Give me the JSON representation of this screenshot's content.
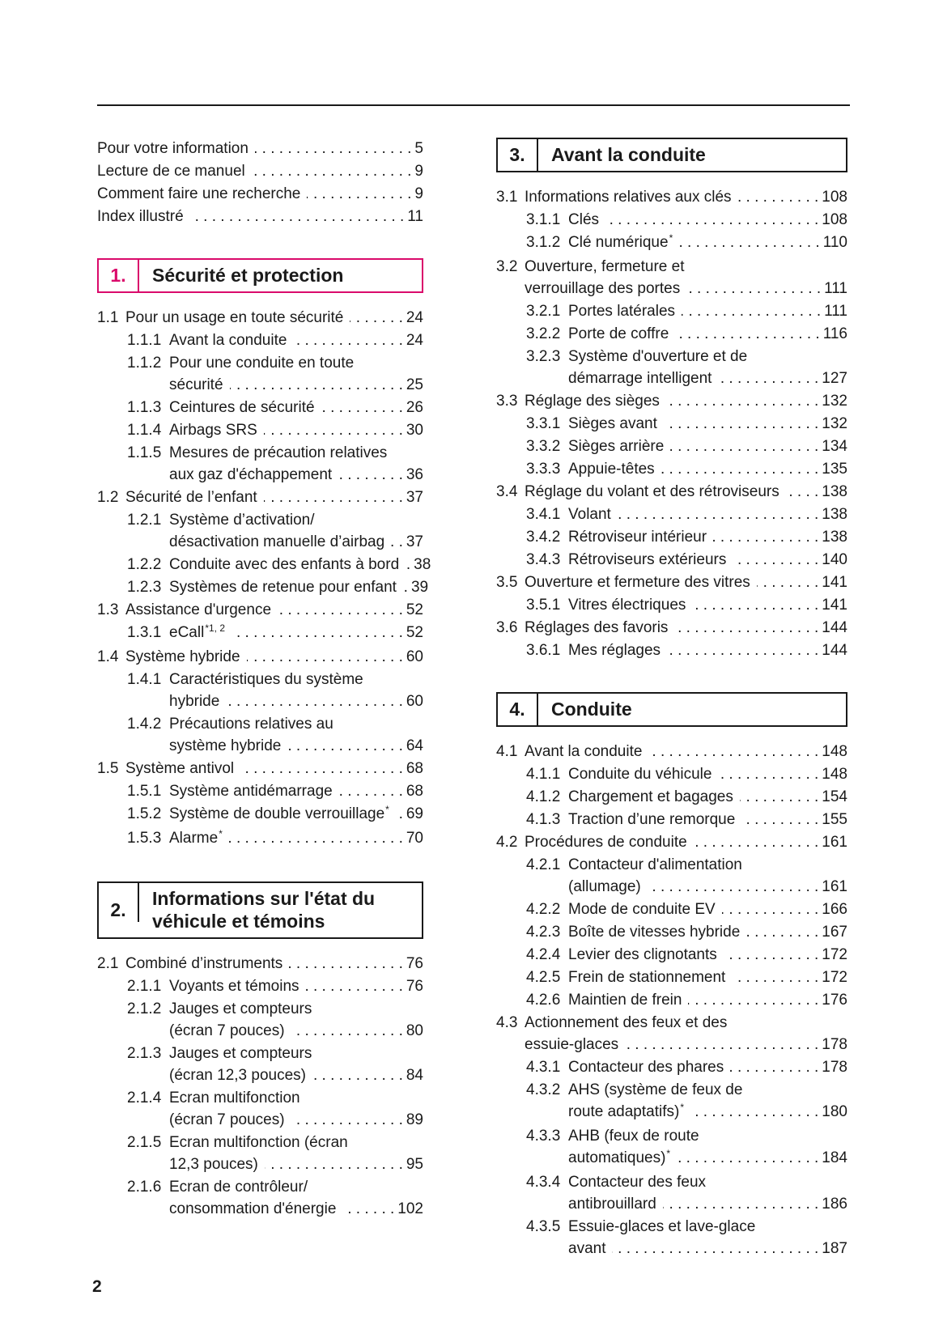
{
  "colors": {
    "ink": "#1a1a1a",
    "accent": "#da0a6b"
  },
  "page_footer": {
    "page_number": "2"
  },
  "columns": {
    "left": [
      {
        "type": "plain",
        "entries": [
          {
            "level": 0,
            "lines": [
              "Pour votre information"
            ],
            "page": "5"
          },
          {
            "level": 0,
            "lines": [
              "Lecture de ce manuel"
            ],
            "page": "9"
          },
          {
            "level": 0,
            "lines": [
              "Comment faire une recherche"
            ],
            "page": "9"
          },
          {
            "level": 0,
            "lines": [
              "Index illustré"
            ],
            "page": "11"
          }
        ]
      },
      {
        "type": "section",
        "number": "1.",
        "title": "Sécurité et protection",
        "accent": true,
        "entries": [
          {
            "num": "1.1",
            "level": 1,
            "lines": [
              "Pour un usage en toute sécurité"
            ],
            "page": "24"
          },
          {
            "num": "1.1.1",
            "level": 2,
            "lines": [
              "Avant la conduite"
            ],
            "page": "24"
          },
          {
            "num": "1.1.2",
            "level": 2,
            "lines": [
              "Pour une conduite en toute",
              "sécurité"
            ],
            "page": "25"
          },
          {
            "num": "1.1.3",
            "level": 2,
            "lines": [
              "Ceintures de sécurité"
            ],
            "page": "26"
          },
          {
            "num": "1.1.4",
            "level": 2,
            "lines": [
              "Airbags SRS"
            ],
            "page": "30"
          },
          {
            "num": "1.1.5",
            "level": 2,
            "lines": [
              "Mesures de précaution relatives",
              "aux gaz d'échappement"
            ],
            "page": "36"
          },
          {
            "num": "1.2",
            "level": 1,
            "lines": [
              "Sécurité de l’enfant"
            ],
            "page": "37"
          },
          {
            "num": "1.2.1",
            "level": 2,
            "lines": [
              "Système d’activation/",
              "désactivation manuelle d’airbag"
            ],
            "page": "37"
          },
          {
            "num": "1.2.2",
            "level": 2,
            "lines": [
              "Conduite avec des enfants à bord"
            ],
            "page": "38"
          },
          {
            "num": "1.2.3",
            "level": 2,
            "lines": [
              "Systèmes de retenue pour enfant"
            ],
            "page": "39"
          },
          {
            "num": "1.3",
            "level": 1,
            "lines": [
              "Assistance d'urgence"
            ],
            "page": "52"
          },
          {
            "num": "1.3.1",
            "level": 2,
            "lines": [
              {
                "text": "eCall",
                "sup": "*1, 2"
              }
            ],
            "page": "52"
          },
          {
            "num": "1.4",
            "level": 1,
            "lines": [
              "Système hybride"
            ],
            "page": "60"
          },
          {
            "num": "1.4.1",
            "level": 2,
            "lines": [
              "Caractéristiques du système",
              "hybride"
            ],
            "page": "60"
          },
          {
            "num": "1.4.2",
            "level": 2,
            "lines": [
              "Précautions relatives au",
              "système hybride"
            ],
            "page": "64"
          },
          {
            "num": "1.5",
            "level": 1,
            "lines": [
              "Système antivol"
            ],
            "page": "68"
          },
          {
            "num": "1.5.1",
            "level": 2,
            "lines": [
              "Système antidémarrage"
            ],
            "page": "68"
          },
          {
            "num": "1.5.2",
            "level": 2,
            "lines": [
              {
                "text": "Système de double verrouillage",
                "sup": "*"
              }
            ],
            "page": "69"
          },
          {
            "num": "1.5.3",
            "level": 2,
            "lines": [
              {
                "text": "Alarme",
                "sup": "*"
              }
            ],
            "page": "70"
          }
        ]
      },
      {
        "type": "section",
        "number": "2.",
        "title": "Informations sur l'état du véhicule et témoins",
        "accent": false,
        "entries": [
          {
            "num": "2.1",
            "level": 1,
            "lines": [
              "Combiné d’instruments"
            ],
            "page": "76"
          },
          {
            "num": "2.1.1",
            "level": 2,
            "lines": [
              "Voyants et témoins"
            ],
            "page": "76"
          },
          {
            "num": "2.1.2",
            "level": 2,
            "lines": [
              "Jauges et compteurs",
              "(écran 7 pouces)"
            ],
            "page": "80"
          },
          {
            "num": "2.1.3",
            "level": 2,
            "lines": [
              "Jauges et compteurs",
              "(écran 12,3 pouces)"
            ],
            "page": "84"
          },
          {
            "num": "2.1.4",
            "level": 2,
            "lines": [
              "Ecran multifonction",
              "(écran 7 pouces)"
            ],
            "page": "89"
          },
          {
            "num": "2.1.5",
            "level": 2,
            "lines": [
              "Ecran multifonction (écran",
              "12,3 pouces)"
            ],
            "page": "95"
          },
          {
            "num": "2.1.6",
            "level": 2,
            "lines": [
              "Ecran de contrôleur/",
              "consommation d'énergie"
            ],
            "page": "102"
          }
        ]
      }
    ],
    "right": [
      {
        "type": "section",
        "number": "3.",
        "title": "Avant la conduite",
        "accent": false,
        "entries": [
          {
            "num": "3.1",
            "level": 1,
            "lines": [
              "Informations relatives aux clés"
            ],
            "page": "108"
          },
          {
            "num": "3.1.1",
            "level": 2,
            "lines": [
              "Clés"
            ],
            "page": "108"
          },
          {
            "num": "3.1.2",
            "level": 2,
            "lines": [
              {
                "text": "Clé numérique",
                "sup": "*"
              }
            ],
            "page": "110"
          },
          {
            "num": "3.2",
            "level": 1,
            "lines": [
              "Ouverture, fermeture et",
              "verrouillage des portes"
            ],
            "page": "111"
          },
          {
            "num": "3.2.1",
            "level": 2,
            "lines": [
              "Portes latérales"
            ],
            "page": "111"
          },
          {
            "num": "3.2.2",
            "level": 2,
            "lines": [
              "Porte de coffre"
            ],
            "page": "116"
          },
          {
            "num": "3.2.3",
            "level": 2,
            "lines": [
              "Système d'ouverture et de",
              "démarrage intelligent"
            ],
            "page": "127"
          },
          {
            "num": "3.3",
            "level": 1,
            "lines": [
              "Réglage des sièges"
            ],
            "page": "132"
          },
          {
            "num": "3.3.1",
            "level": 2,
            "lines": [
              "Sièges avant"
            ],
            "page": "132"
          },
          {
            "num": "3.3.2",
            "level": 2,
            "lines": [
              "Sièges arrière"
            ],
            "page": "134"
          },
          {
            "num": "3.3.3",
            "level": 2,
            "lines": [
              "Appuie-têtes"
            ],
            "page": "135"
          },
          {
            "num": "3.4",
            "level": 1,
            "lines": [
              "Réglage du volant et des rétroviseurs"
            ],
            "page": "138"
          },
          {
            "num": "3.4.1",
            "level": 2,
            "lines": [
              "Volant"
            ],
            "page": "138"
          },
          {
            "num": "3.4.2",
            "level": 2,
            "lines": [
              "Rétroviseur intérieur"
            ],
            "page": "138"
          },
          {
            "num": "3.4.3",
            "level": 2,
            "lines": [
              "Rétroviseurs extérieurs"
            ],
            "page": "140"
          },
          {
            "num": "3.5",
            "level": 1,
            "lines": [
              "Ouverture et fermeture des vitres"
            ],
            "page": "141"
          },
          {
            "num": "3.5.1",
            "level": 2,
            "lines": [
              "Vitres électriques"
            ],
            "page": "141"
          },
          {
            "num": "3.6",
            "level": 1,
            "lines": [
              "Réglages des favoris"
            ],
            "page": "144"
          },
          {
            "num": "3.6.1",
            "level": 2,
            "lines": [
              "Mes réglages"
            ],
            "page": "144"
          }
        ]
      },
      {
        "type": "section",
        "number": "4.",
        "title": "Conduite",
        "accent": false,
        "entries": [
          {
            "num": "4.1",
            "level": 1,
            "lines": [
              "Avant la conduite"
            ],
            "page": "148"
          },
          {
            "num": "4.1.1",
            "level": 2,
            "lines": [
              "Conduite du véhicule"
            ],
            "page": "148"
          },
          {
            "num": "4.1.2",
            "level": 2,
            "lines": [
              "Chargement et bagages"
            ],
            "page": "154"
          },
          {
            "num": "4.1.3",
            "level": 2,
            "lines": [
              "Traction d’une remorque"
            ],
            "page": "155"
          },
          {
            "num": "4.2",
            "level": 1,
            "lines": [
              "Procédures de conduite"
            ],
            "page": "161"
          },
          {
            "num": "4.2.1",
            "level": 2,
            "lines": [
              "Contacteur d'alimentation",
              "(allumage)"
            ],
            "page": "161"
          },
          {
            "num": "4.2.2",
            "level": 2,
            "lines": [
              "Mode de conduite EV"
            ],
            "page": "166"
          },
          {
            "num": "4.2.3",
            "level": 2,
            "lines": [
              "Boîte de vitesses hybride"
            ],
            "page": "167"
          },
          {
            "num": "4.2.4",
            "level": 2,
            "lines": [
              "Levier des clignotants"
            ],
            "page": "172"
          },
          {
            "num": "4.2.5",
            "level": 2,
            "lines": [
              "Frein de stationnement"
            ],
            "page": "172"
          },
          {
            "num": "4.2.6",
            "level": 2,
            "lines": [
              "Maintien de frein"
            ],
            "page": "176"
          },
          {
            "num": "4.3",
            "level": 1,
            "lines": [
              "Actionnement des feux et des",
              "essuie-glaces"
            ],
            "page": "178"
          },
          {
            "num": "4.3.1",
            "level": 2,
            "lines": [
              "Contacteur des phares"
            ],
            "page": "178"
          },
          {
            "num": "4.3.2",
            "level": 2,
            "lines": [
              "AHS (système de feux de",
              {
                "text": "route adaptatifs)",
                "sup": "*"
              }
            ],
            "page": "180"
          },
          {
            "num": "4.3.3",
            "level": 2,
            "lines": [
              "AHB (feux de route",
              {
                "text": "automatiques)",
                "sup": "*"
              }
            ],
            "page": "184"
          },
          {
            "num": "4.3.4",
            "level": 2,
            "lines": [
              "Contacteur des feux",
              "antibrouillard"
            ],
            "page": "186"
          },
          {
            "num": "4.3.5",
            "level": 2,
            "lines": [
              "Essuie-glaces et lave-glace",
              "avant"
            ],
            "page": "187"
          }
        ]
      }
    ]
  }
}
